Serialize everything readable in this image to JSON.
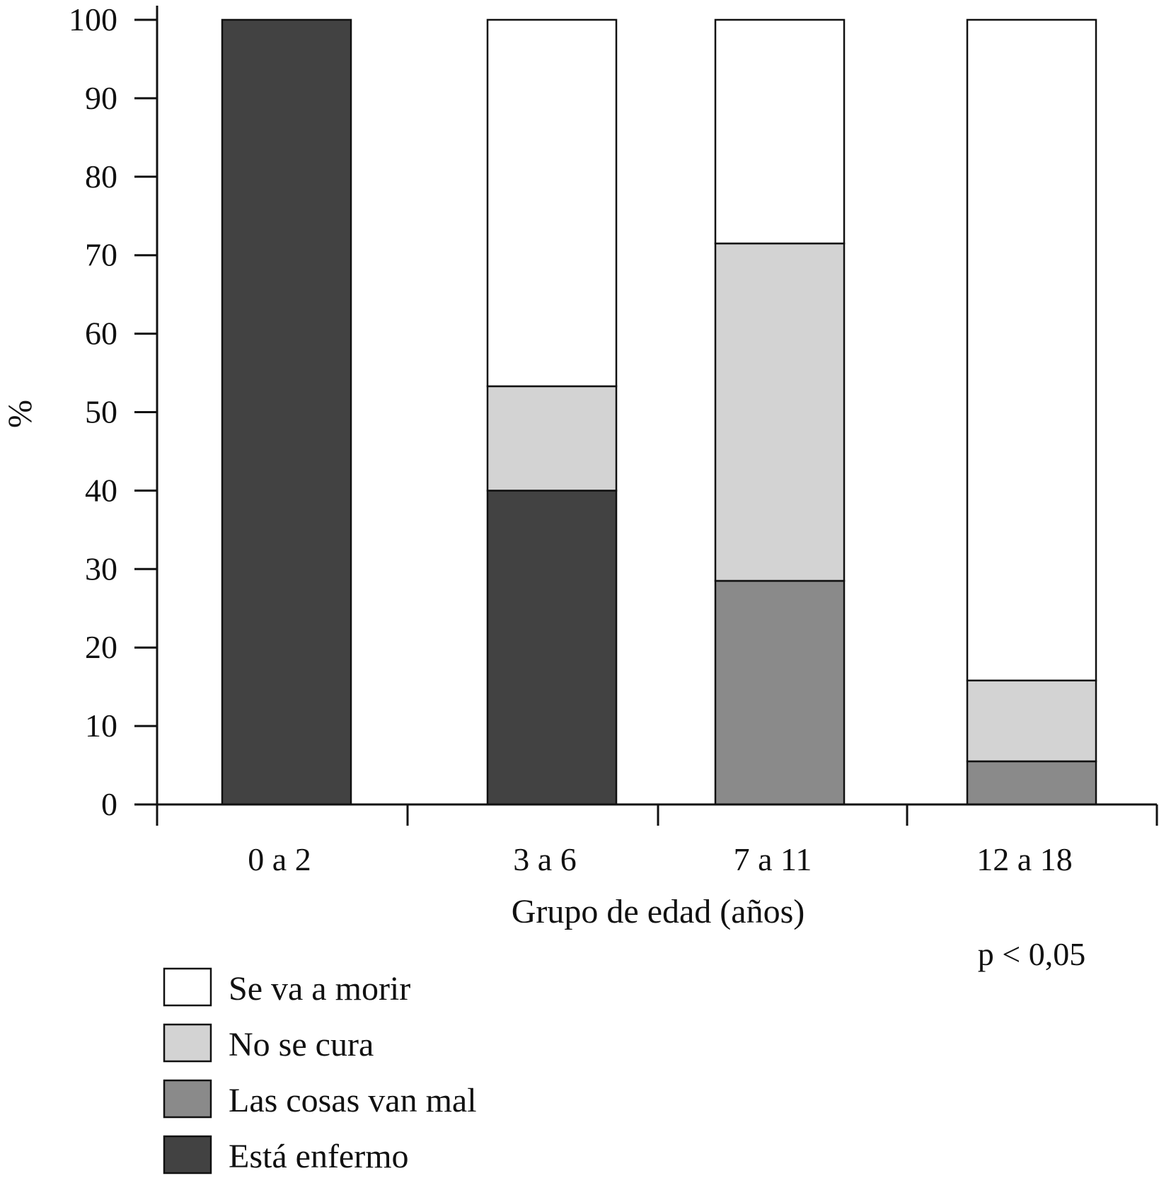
{
  "chart_data": {
    "type": "bar",
    "stacked": true,
    "title": "",
    "xlabel": "Grupo de edad (años)",
    "ylabel": "%",
    "ylim": [
      0,
      100
    ],
    "yticks": [
      "0",
      "10",
      "20",
      "30",
      "40",
      "50",
      "60",
      "70",
      "80",
      "90",
      "100"
    ],
    "categories": [
      "0 a 2",
      "3 a 6",
      "7 a 11",
      "12 a 18"
    ],
    "series": [
      {
        "name": "Está enfermo",
        "color": "#424242",
        "values": [
          100,
          40,
          0,
          0
        ]
      },
      {
        "name": "Las cosas van mal",
        "color": "#8a8a8a",
        "values": [
          0,
          0,
          28.5,
          5.5
        ]
      },
      {
        "name": "No se cura",
        "color": "#d3d3d3",
        "values": [
          0,
          13.3,
          43,
          10.3
        ]
      },
      {
        "name": "Se va a morir",
        "color": "#ffffff",
        "values": [
          0,
          46.7,
          28.5,
          84.2
        ]
      }
    ],
    "legend": {
      "position": "bottom-left",
      "order": [
        "Se va a morir",
        "No se cura",
        "Las cosas van mal",
        "Está enfermo"
      ]
    },
    "annotation": "p < 0,05",
    "grid": false
  }
}
